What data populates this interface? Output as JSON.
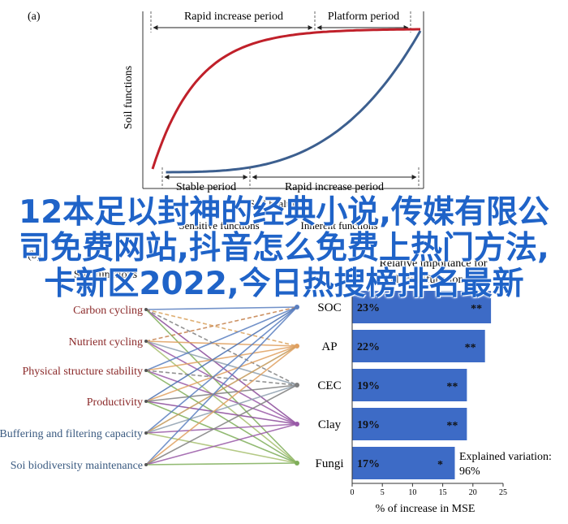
{
  "chart_data": [
    {
      "type": "line",
      "panel_label": "(a)",
      "ylabel": "Soil functions",
      "top_periods": [
        "Rapid increase period",
        "Platform period"
      ],
      "bottom_periods": [
        "Stable period",
        "Rapid increase period"
      ],
      "series": [
        {
          "name": "",
          "color": "#c0202a",
          "shape": "saturating"
        },
        {
          "name": "",
          "color": "#3c5f8f",
          "shape": "delayed"
        }
      ],
      "lower_labels": [
        "Soil health",
        "Sensitive functions",
        "Inherent functions"
      ]
    },
    {
      "type": "network-bar",
      "panel_label": "(b)",
      "left_header": "Soil functions",
      "right_header": [
        "Relative importance for",
        "soil multifunctionality"
      ],
      "functions": [
        "Carbon cycling",
        "Nutrient cycling",
        "Physical structure stability",
        "Productivity",
        "Buffering and filtering capacity",
        "Soi biodiversity maintenance"
      ],
      "categories": [
        "SOC",
        "AP",
        "CEC",
        "Clay",
        "Fungi"
      ],
      "values": [
        23,
        22,
        19,
        19,
        17
      ],
      "value_labels": [
        "23%",
        "22%",
        "19%",
        "19%",
        "17%"
      ],
      "significance": [
        "**",
        "**",
        "**",
        "**",
        "*"
      ],
      "xlabel": "% of increase in MSE",
      "xticks": [
        0,
        5,
        10,
        15,
        20,
        25
      ],
      "xlim": [
        0,
        25
      ],
      "explained_label": "Explained variation:",
      "explained_value": "96%",
      "bar_color": "#3d6bc6",
      "links": [
        {
          "from": 0,
          "to": 0,
          "color": "#5a7fc0",
          "dash": false
        },
        {
          "from": 0,
          "to": 1,
          "color": "#d9a05a",
          "dash": true
        },
        {
          "from": 0,
          "to": 2,
          "color": "#7f7f7f",
          "dash": true
        },
        {
          "from": 0,
          "to": 3,
          "color": "#8a4a9a",
          "dash": false
        },
        {
          "from": 0,
          "to": 4,
          "color": "#7fae5a",
          "dash": false
        },
        {
          "from": 1,
          "to": 0,
          "color": "#c47f4a",
          "dash": true
        },
        {
          "from": 1,
          "to": 1,
          "color": "#e0a060",
          "dash": false
        },
        {
          "from": 1,
          "to": 2,
          "color": "#8fa0b0",
          "dash": false
        },
        {
          "from": 1,
          "to": 3,
          "color": "#9a5aa8",
          "dash": false
        },
        {
          "from": 1,
          "to": 4,
          "color": "#a8c070",
          "dash": false
        },
        {
          "from": 2,
          "to": 0,
          "color": "#5a7fc0",
          "dash": false
        },
        {
          "from": 2,
          "to": 1,
          "color": "#e0a060",
          "dash": false
        },
        {
          "from": 2,
          "to": 2,
          "color": "#7f7f7f",
          "dash": true
        },
        {
          "from": 2,
          "to": 3,
          "color": "#9a5aa8",
          "dash": false
        },
        {
          "from": 2,
          "to": 4,
          "color": "#7fae5a",
          "dash": false
        },
        {
          "from": 3,
          "to": 0,
          "color": "#4a6fb0",
          "dash": false
        },
        {
          "from": 3,
          "to": 1,
          "color": "#e0a060",
          "dash": false
        },
        {
          "from": 3,
          "to": 2,
          "color": "#7f7f7f",
          "dash": false
        },
        {
          "from": 3,
          "to": 3,
          "color": "#8a4a9a",
          "dash": false
        },
        {
          "from": 3,
          "to": 4,
          "color": "#7fae5a",
          "dash": false
        },
        {
          "from": 4,
          "to": 0,
          "color": "#5a7fc0",
          "dash": false
        },
        {
          "from": 4,
          "to": 1,
          "color": "#c49a5a",
          "dash": false
        },
        {
          "from": 4,
          "to": 2,
          "color": "#8fa0b0",
          "dash": false
        },
        {
          "from": 4,
          "to": 3,
          "color": "#9a5aa8",
          "dash": false
        },
        {
          "from": 4,
          "to": 4,
          "color": "#a8c070",
          "dash": false
        },
        {
          "from": 5,
          "to": 0,
          "color": "#5a7fc0",
          "dash": false
        },
        {
          "from": 5,
          "to": 1,
          "color": "#e0a060",
          "dash": false
        },
        {
          "from": 5,
          "to": 2,
          "color": "#7f7f7f",
          "dash": false
        },
        {
          "from": 5,
          "to": 3,
          "color": "#9a5aa8",
          "dash": false
        },
        {
          "from": 5,
          "to": 4,
          "color": "#7fae5a",
          "dash": false
        }
      ]
    }
  ],
  "overlay_text": "12本足以封神的经典小说,传媒有限公司免费网站,抖音怎么免费上热门方法,卡新区2022,今日热搜榜排名最新"
}
